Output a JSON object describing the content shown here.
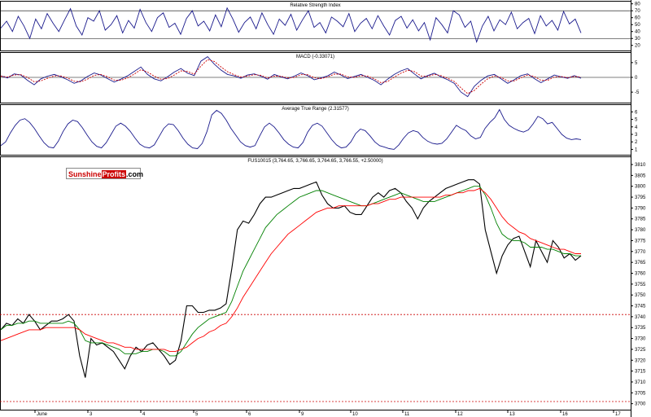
{
  "logo": {
    "part1": "Sunshine",
    "part2": "Profits",
    "part3": ".com"
  },
  "colors": {
    "rsi": "#1a1a8c",
    "macd": "#1a1a8c",
    "signal": "#cc0000",
    "atr": "#1a1a8c",
    "price": "#000000",
    "ma_fast": "#008000",
    "ma_slow": "#ff0000",
    "grid": "#000000",
    "ref_line": "#cc0000"
  },
  "chart_data": [
    {
      "type": "line",
      "title": "Relative Strength Index",
      "y_ticks": [
        "80",
        "70",
        "60",
        "50",
        "40",
        "30",
        "20"
      ],
      "ylim": [
        15,
        82
      ],
      "ref_levels": [
        70,
        30
      ],
      "series": [
        {
          "values": [
            45,
            55,
            40,
            62,
            48,
            30,
            58,
            44,
            66,
            52,
            40,
            57,
            73,
            48,
            35,
            60,
            55,
            70,
            42,
            50,
            63,
            38,
            56,
            45,
            72,
            53,
            40,
            60,
            67,
            46,
            52,
            36,
            59,
            70,
            48,
            55,
            41,
            64,
            47,
            74,
            58,
            39,
            53,
            61,
            44,
            67,
            50,
            36,
            58,
            49,
            65,
            42,
            57,
            70,
            46,
            53,
            38,
            61,
            55,
            47,
            66,
            40,
            52,
            59,
            44,
            63,
            48,
            35,
            56,
            62,
            45,
            57,
            41,
            53,
            28,
            60,
            50,
            38,
            70,
            64,
            46,
            55,
            25,
            48,
            62,
            41,
            57,
            50,
            68,
            44,
            53,
            59,
            37,
            63,
            48,
            56,
            42,
            69,
            51,
            58,
            38
          ]
        }
      ]
    },
    {
      "type": "line",
      "title": "MACD (-0.33071)",
      "y_ticks": [
        "5",
        "0",
        "-5"
      ],
      "ylim": [
        -8,
        8
      ],
      "ref_levels": [
        0
      ],
      "series": [
        {
          "name": "MACD",
          "values": [
            0.5,
            -0.2,
            1.2,
            0.8,
            -1.0,
            -2.5,
            -0.5,
            0.4,
            1.0,
            0.2,
            -0.8,
            -2.0,
            -1.2,
            0.3,
            1.5,
            0.8,
            -0.4,
            -1.6,
            -0.6,
            0.5,
            2.0,
            3.5,
            1.0,
            -0.5,
            -1.2,
            0.2,
            1.8,
            3.0,
            1.4,
            0.6,
            5.5,
            7.0,
            4.5,
            2.5,
            1.0,
            0.5,
            -0.3,
            0.8,
            1.2,
            0.4,
            -0.6,
            1.0,
            0.2,
            -0.5,
            0.4,
            1.5,
            0.6,
            -0.8,
            -0.2,
            0.5,
            1.8,
            0.8,
            -0.4,
            0.3,
            1.0,
            0.0,
            -1.0,
            -2.5,
            -0.6,
            1.0,
            2.2,
            3.0,
            1.2,
            -0.5,
            0.6,
            1.4,
            0.2,
            -0.8,
            -2.0,
            -5.0,
            -6.5,
            -3.0,
            -1.0,
            0.5,
            1.0,
            -0.5,
            -2.0,
            -0.8,
            0.6,
            1.2,
            -0.4,
            -1.8,
            -0.5,
            0.8,
            0.2,
            -0.3,
            0.6,
            -0.3
          ]
        },
        {
          "name": "Signal",
          "values": [
            0.4,
            0.1,
            0.8,
            0.9,
            0.0,
            -1.5,
            -1.2,
            -0.3,
            0.5,
            0.5,
            -0.2,
            -1.3,
            -1.5,
            -0.6,
            0.7,
            1.0,
            0.2,
            -0.9,
            -1.0,
            -0.2,
            1.1,
            2.6,
            1.8,
            0.4,
            -0.6,
            -0.4,
            0.8,
            2.2,
            2.0,
            1.1,
            3.8,
            6.0,
            5.4,
            3.6,
            1.9,
            0.9,
            0.1,
            0.4,
            0.9,
            0.7,
            -0.2,
            0.4,
            0.4,
            -0.2,
            0.0,
            0.9,
            0.9,
            -0.1,
            -0.4,
            0.1,
            1.1,
            1.1,
            0.2,
            0.0,
            0.6,
            0.4,
            -0.5,
            -1.8,
            -1.4,
            0.1,
            1.4,
            2.4,
            2.0,
            0.5,
            0.3,
            1.0,
            0.6,
            -0.3,
            -1.4,
            -3.6,
            -5.5,
            -4.4,
            -2.3,
            -0.5,
            0.5,
            0.0,
            -1.2,
            -1.2,
            -0.1,
            0.8,
            0.3,
            -1.0,
            -1.0,
            0.1,
            0.3,
            -0.1,
            0.3,
            0.1
          ]
        }
      ]
    },
    {
      "type": "line",
      "title": "Average True Range (2.31577)",
      "y_ticks": [
        "6",
        "5",
        "4",
        "3",
        "2",
        "1"
      ],
      "ylim": [
        0.5,
        6.8
      ],
      "series": [
        {
          "values": [
            1.5,
            2.0,
            3.2,
            4.2,
            4.9,
            5.1,
            4.6,
            3.8,
            2.8,
            1.9,
            1.3,
            1.2,
            2.1,
            3.4,
            4.4,
            4.9,
            4.7,
            3.9,
            2.9,
            2.0,
            1.4,
            1.2,
            1.9,
            3.0,
            4.1,
            4.5,
            4.1,
            3.4,
            2.5,
            1.7,
            1.3,
            1.2,
            1.6,
            2.7,
            3.8,
            4.4,
            4.3,
            3.5,
            2.5,
            1.7,
            1.2,
            1.1,
            1.8,
            3.4,
            5.6,
            6.2,
            5.8,
            4.9,
            3.8,
            2.9,
            2.0,
            1.5,
            1.3,
            1.5,
            2.8,
            4.0,
            4.5,
            4.0,
            3.2,
            2.3,
            1.7,
            1.3,
            1.2,
            1.9,
            3.3,
            4.2,
            4.5,
            4.1,
            3.2,
            2.3,
            1.6,
            1.2,
            1.3,
            2.0,
            3.1,
            3.7,
            3.5,
            2.8,
            2.0,
            1.5,
            1.3,
            1.1,
            1.0,
            1.6,
            2.5,
            3.2,
            3.5,
            3.3,
            2.6,
            2.1,
            1.8,
            1.7,
            1.8,
            2.4,
            3.3,
            4.2,
            3.8,
            3.5,
            2.8,
            2.4,
            2.6,
            3.8,
            4.6,
            5.2,
            6.3,
            5.0,
            4.2,
            3.8,
            3.5,
            3.3,
            3.6,
            4.4,
            5.4,
            5.1,
            4.4,
            4.6,
            3.8,
            3.0,
            2.5,
            2.3,
            2.4,
            2.3
          ]
        }
      ]
    },
    {
      "type": "line",
      "title": "FUS10015 (3,764.65, 3,766.65, 3,764.65, 3,766.55, +2.50000)",
      "x_ticks": [
        "June",
        "3",
        "4",
        "5",
        "6",
        "9",
        "10",
        "11",
        "12",
        "13",
        "16",
        "17"
      ],
      "y_ticks": [
        "3810",
        "3805",
        "3800",
        "3795",
        "3790",
        "3785",
        "3780",
        "3775",
        "3770",
        "3765",
        "3760",
        "3755",
        "3750",
        "3745",
        "3740",
        "3735",
        "3730",
        "3725",
        "3720",
        "3715",
        "3710",
        "3705",
        "3700"
      ],
      "ylim": [
        3698,
        3813
      ],
      "ref_levels": [
        3741,
        3701
      ],
      "series": [
        {
          "name": "Price",
          "values": [
            3734,
            3737,
            3736,
            3739,
            3737,
            3741,
            3738,
            3734,
            3736,
            3738,
            3738,
            3739,
            3741,
            3738,
            3722,
            3712,
            3730,
            3727,
            3728,
            3726,
            3724,
            3720,
            3716,
            3722,
            3726,
            3724,
            3727,
            3728,
            3725,
            3722,
            3718,
            3720,
            3729,
            3745,
            3745,
            3742,
            3742,
            3743,
            3743,
            3744,
            3746,
            3762,
            3780,
            3784,
            3783,
            3787,
            3792,
            3795,
            3795,
            3796,
            3797,
            3798,
            3799,
            3799,
            3800,
            3801,
            3802,
            3796,
            3792,
            3790,
            3790,
            3791,
            3788,
            3787,
            3787,
            3791,
            3795,
            3797,
            3795,
            3798,
            3799,
            3797,
            3793,
            3790,
            3785,
            3790,
            3793,
            3795,
            3797,
            3799,
            3800,
            3801,
            3802,
            3803,
            3803,
            3801,
            3780,
            3770,
            3760,
            3768,
            3773,
            3776,
            3777,
            3770,
            3763,
            3775,
            3770,
            3765,
            3775,
            3772,
            3767,
            3769,
            3766,
            3768
          ]
        },
        {
          "name": "MA fast",
          "values": [
            3734,
            3736,
            3736,
            3737,
            3737,
            3738,
            3738,
            3737,
            3737,
            3737,
            3737,
            3737,
            3738,
            3737,
            3734,
            3729,
            3728,
            3728,
            3728,
            3727,
            3726,
            3725,
            3723,
            3723,
            3723,
            3724,
            3724,
            3725,
            3725,
            3724,
            3722,
            3722,
            3724,
            3728,
            3732,
            3735,
            3737,
            3739,
            3740,
            3741,
            3742,
            3747,
            3754,
            3761,
            3766,
            3771,
            3776,
            3781,
            3784,
            3787,
            3789,
            3791,
            3793,
            3795,
            3796,
            3797,
            3798,
            3798,
            3797,
            3796,
            3795,
            3794,
            3793,
            3792,
            3791,
            3791,
            3792,
            3793,
            3794,
            3795,
            3796,
            3797,
            3796,
            3795,
            3794,
            3793,
            3793,
            3793,
            3794,
            3795,
            3796,
            3797,
            3798,
            3799,
            3800,
            3800,
            3796,
            3790,
            3783,
            3778,
            3776,
            3775,
            3775,
            3774,
            3772,
            3772,
            3772,
            3771,
            3771,
            3770,
            3769,
            3769,
            3768,
            3768
          ]
        },
        {
          "name": "MA slow",
          "values": [
            3729,
            3730,
            3731,
            3732,
            3733,
            3734,
            3734,
            3734,
            3735,
            3735,
            3735,
            3735,
            3735,
            3735,
            3734,
            3732,
            3731,
            3730,
            3729,
            3728,
            3728,
            3727,
            3726,
            3726,
            3725,
            3725,
            3725,
            3725,
            3725,
            3725,
            3724,
            3724,
            3725,
            3726,
            3728,
            3730,
            3731,
            3733,
            3734,
            3736,
            3737,
            3740,
            3744,
            3749,
            3753,
            3757,
            3761,
            3765,
            3769,
            3772,
            3775,
            3778,
            3780,
            3782,
            3784,
            3786,
            3788,
            3789,
            3790,
            3790,
            3791,
            3791,
            3791,
            3791,
            3791,
            3791,
            3792,
            3792,
            3793,
            3794,
            3794,
            3795,
            3795,
            3795,
            3795,
            3795,
            3795,
            3795,
            3795,
            3796,
            3796,
            3797,
            3797,
            3798,
            3798,
            3799,
            3797,
            3794,
            3790,
            3786,
            3783,
            3781,
            3779,
            3778,
            3776,
            3775,
            3774,
            3773,
            3772,
            3771,
            3771,
            3770,
            3769,
            3769
          ]
        }
      ]
    }
  ]
}
